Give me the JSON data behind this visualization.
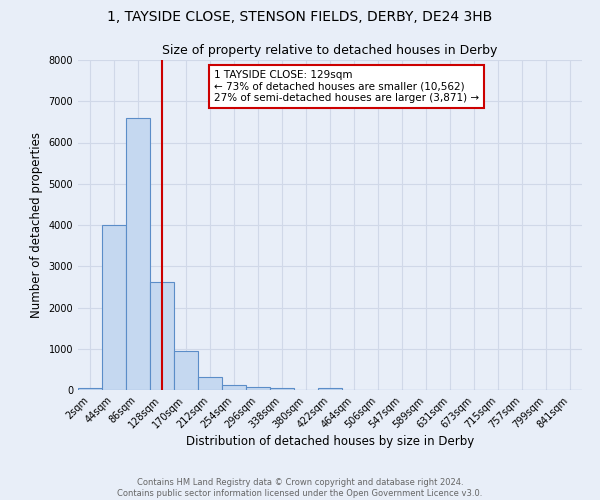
{
  "title": "1, TAYSIDE CLOSE, STENSON FIELDS, DERBY, DE24 3HB",
  "subtitle": "Size of property relative to detached houses in Derby",
  "xlabel": "Distribution of detached houses by size in Derby",
  "ylabel": "Number of detached properties",
  "footnote1": "Contains HM Land Registry data © Crown copyright and database right 2024.",
  "footnote2": "Contains public sector information licensed under the Open Government Licence v3.0.",
  "categories": [
    "2sqm",
    "44sqm",
    "86sqm",
    "128sqm",
    "170sqm",
    "212sqm",
    "254sqm",
    "296sqm",
    "338sqm",
    "380sqm",
    "422sqm",
    "464sqm",
    "506sqm",
    "547sqm",
    "589sqm",
    "631sqm",
    "673sqm",
    "715sqm",
    "757sqm",
    "799sqm",
    "841sqm"
  ],
  "bar_values": [
    60,
    3990,
    6600,
    2620,
    940,
    310,
    120,
    75,
    45,
    0,
    60,
    0,
    0,
    0,
    0,
    0,
    0,
    0,
    0,
    0,
    0
  ],
  "bar_color": "#c5d8f0",
  "bar_edge_color": "#5b8dc8",
  "property_line_x": 3.0,
  "property_line_color": "#cc0000",
  "annotation_text": "1 TAYSIDE CLOSE: 129sqm\n← 73% of detached houses are smaller (10,562)\n27% of semi-detached houses are larger (3,871) →",
  "annotation_box_color": "#ffffff",
  "annotation_box_edge": "#cc0000",
  "ylim": [
    0,
    8000
  ],
  "yticks": [
    0,
    1000,
    2000,
    3000,
    4000,
    5000,
    6000,
    7000,
    8000
  ],
  "grid_color": "#d0d8e8",
  "bg_color": "#e8eef8",
  "title_fontsize": 10,
  "subtitle_fontsize": 9,
  "axis_fontsize": 8.5,
  "tick_fontsize": 7,
  "annot_fontsize": 7.5,
  "footnote_fontsize": 6,
  "footnote_color": "#666666"
}
